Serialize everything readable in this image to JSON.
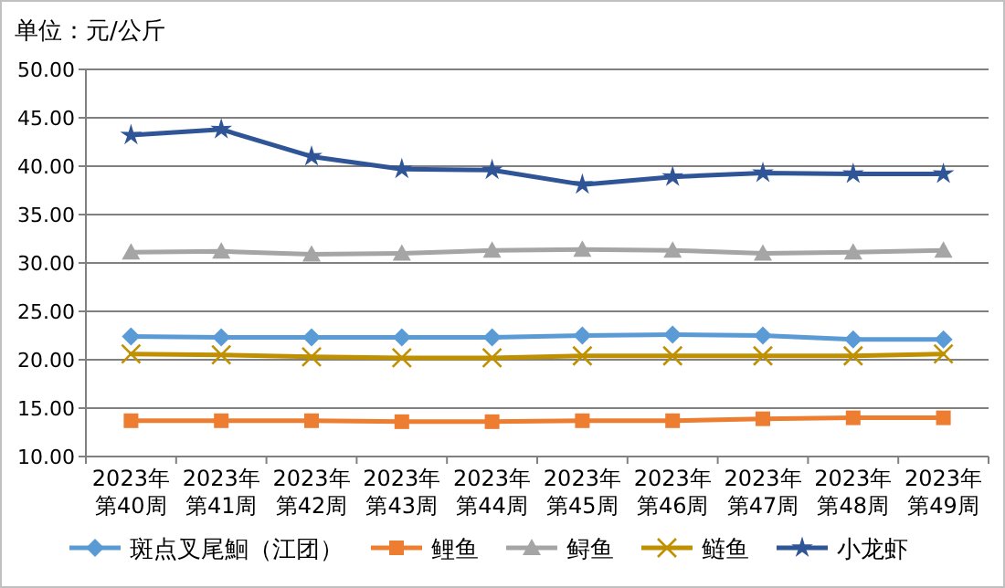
{
  "chart_data": {
    "type": "line",
    "title": "单位：元/公斤",
    "categories": [
      "2023年第40周",
      "2023年第41周",
      "2023年第42周",
      "2023年第43周",
      "2023年第44周",
      "2023年第45周",
      "2023年第46周",
      "2023年第47周",
      "2023年第48周",
      "2023年第49周"
    ],
    "series": [
      {
        "name": "斑点叉尾鮰（江团）",
        "color": "#5b9bd5",
        "marker": "diamond",
        "values": [
          22.4,
          22.3,
          22.3,
          22.3,
          22.3,
          22.5,
          22.6,
          22.5,
          22.1,
          22.1
        ]
      },
      {
        "name": "鲤鱼",
        "color": "#ed7d31",
        "marker": "square",
        "values": [
          13.7,
          13.7,
          13.7,
          13.6,
          13.6,
          13.7,
          13.7,
          13.9,
          14.0,
          14.0
        ]
      },
      {
        "name": "鲟鱼",
        "color": "#a5a5a5",
        "marker": "triangle",
        "values": [
          31.1,
          31.2,
          30.9,
          31.0,
          31.3,
          31.4,
          31.3,
          31.0,
          31.1,
          31.3
        ]
      },
      {
        "name": "鲢鱼",
        "color": "#bf9000",
        "marker": "cross",
        "values": [
          20.6,
          20.5,
          20.3,
          20.2,
          20.2,
          20.4,
          20.4,
          20.4,
          20.4,
          20.6
        ]
      },
      {
        "name": "小龙虾",
        "color": "#2f5597",
        "marker": "star",
        "values": [
          43.2,
          43.8,
          41.0,
          39.7,
          39.6,
          38.1,
          38.9,
          39.3,
          39.2,
          39.2
        ]
      }
    ],
    "ylim": [
      10,
      50
    ],
    "yticks": [
      {
        "value": 10,
        "label": "10.00"
      },
      {
        "value": 15,
        "label": "15.00"
      },
      {
        "value": 20,
        "label": "20.00"
      },
      {
        "value": 25,
        "label": "25.00"
      },
      {
        "value": 30,
        "label": "30.00"
      },
      {
        "value": 35,
        "label": "35.00"
      },
      {
        "value": 40,
        "label": "40.00"
      },
      {
        "value": 45,
        "label": "45.00"
      },
      {
        "value": 50,
        "label": "50.00"
      }
    ],
    "grid": "y",
    "legend": "bottom",
    "line_style": "solid"
  }
}
